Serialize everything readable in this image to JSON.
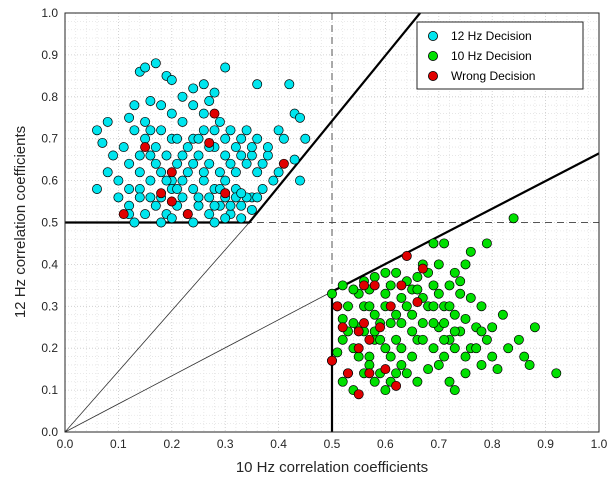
{
  "chart_data": {
    "type": "scatter",
    "title": "",
    "xlabel": "10 Hz correlation coefficients",
    "ylabel": "12 Hz correlation coefficients",
    "xlim": [
      0,
      1
    ],
    "ylim": [
      0,
      1
    ],
    "x_ticks": [
      "0.0",
      "0.1",
      "0.2",
      "0.3",
      "0.4",
      "0.5",
      "0.6",
      "0.7",
      "0.8",
      "0.9",
      "1.0"
    ],
    "y_ticks": [
      "0.0",
      "0.1",
      "0.2",
      "0.3",
      "0.4",
      "0.5",
      "0.6",
      "0.7",
      "0.8",
      "0.9",
      "1.0"
    ],
    "grid": "dotted minor and major",
    "legend_position": "top-right",
    "colors": {
      "cyan": "#00e5ee",
      "green": "#00e000",
      "red": "#e00000",
      "edge": "#000000"
    },
    "series": [
      {
        "name": "12 Hz Decision",
        "color": "#00e5ee",
        "points": [
          [
            0.06,
            0.72
          ],
          [
            0.07,
            0.69
          ],
          [
            0.08,
            0.74
          ],
          [
            0.12,
            0.75
          ],
          [
            0.14,
            0.86
          ],
          [
            0.15,
            0.87
          ],
          [
            0.17,
            0.88
          ],
          [
            0.19,
            0.85
          ],
          [
            0.13,
            0.78
          ],
          [
            0.16,
            0.79
          ],
          [
            0.2,
            0.84
          ],
          [
            0.22,
            0.8
          ],
          [
            0.24,
            0.82
          ],
          [
            0.26,
            0.83
          ],
          [
            0.28,
            0.81
          ],
          [
            0.3,
            0.87
          ],
          [
            0.36,
            0.83
          ],
          [
            0.42,
            0.83
          ],
          [
            0.43,
            0.76
          ],
          [
            0.44,
            0.75
          ],
          [
            0.45,
            0.7
          ],
          [
            0.41,
            0.7
          ],
          [
            0.43,
            0.65
          ],
          [
            0.44,
            0.6
          ],
          [
            0.4,
            0.62
          ],
          [
            0.38,
            0.66
          ],
          [
            0.36,
            0.7
          ],
          [
            0.34,
            0.72
          ],
          [
            0.32,
            0.68
          ],
          [
            0.3,
            0.7
          ],
          [
            0.28,
            0.72
          ],
          [
            0.26,
            0.76
          ],
          [
            0.24,
            0.7
          ],
          [
            0.22,
            0.66
          ],
          [
            0.2,
            0.7
          ],
          [
            0.18,
            0.72
          ],
          [
            0.16,
            0.66
          ],
          [
            0.14,
            0.62
          ],
          [
            0.12,
            0.64
          ],
          [
            0.1,
            0.6
          ],
          [
            0.08,
            0.62
          ],
          [
            0.06,
            0.58
          ],
          [
            0.1,
            0.56
          ],
          [
            0.12,
            0.54
          ],
          [
            0.14,
            0.58
          ],
          [
            0.16,
            0.6
          ],
          [
            0.18,
            0.62
          ],
          [
            0.2,
            0.6
          ],
          [
            0.22,
            0.56
          ],
          [
            0.24,
            0.58
          ],
          [
            0.26,
            0.6
          ],
          [
            0.28,
            0.58
          ],
          [
            0.3,
            0.6
          ],
          [
            0.32,
            0.62
          ],
          [
            0.34,
            0.64
          ],
          [
            0.36,
            0.62
          ],
          [
            0.37,
            0.58
          ],
          [
            0.35,
            0.56
          ],
          [
            0.33,
            0.54
          ],
          [
            0.31,
            0.52
          ],
          [
            0.29,
            0.54
          ],
          [
            0.27,
            0.52
          ],
          [
            0.25,
            0.54
          ],
          [
            0.23,
            0.52
          ],
          [
            0.21,
            0.54
          ],
          [
            0.19,
            0.52
          ],
          [
            0.17,
            0.54
          ],
          [
            0.15,
            0.52
          ],
          [
            0.13,
            0.5
          ],
          [
            0.12,
            0.52
          ],
          [
            0.18,
            0.5
          ],
          [
            0.2,
            0.51
          ],
          [
            0.24,
            0.5
          ],
          [
            0.28,
            0.5
          ],
          [
            0.3,
            0.51
          ],
          [
            0.33,
            0.51
          ],
          [
            0.35,
            0.53
          ],
          [
            0.27,
            0.56
          ],
          [
            0.23,
            0.62
          ],
          [
            0.21,
            0.64
          ],
          [
            0.19,
            0.66
          ],
          [
            0.17,
            0.68
          ],
          [
            0.15,
            0.7
          ],
          [
            0.13,
            0.72
          ],
          [
            0.11,
            0.68
          ],
          [
            0.09,
            0.66
          ],
          [
            0.25,
            0.66
          ],
          [
            0.27,
            0.64
          ],
          [
            0.29,
            0.62
          ],
          [
            0.31,
            0.64
          ],
          [
            0.33,
            0.66
          ],
          [
            0.35,
            0.66
          ],
          [
            0.37,
            0.64
          ],
          [
            0.39,
            0.6
          ],
          [
            0.38,
            0.68
          ],
          [
            0.4,
            0.72
          ],
          [
            0.22,
            0.74
          ],
          [
            0.2,
            0.76
          ],
          [
            0.18,
            0.78
          ],
          [
            0.26,
            0.72
          ],
          [
            0.28,
            0.68
          ],
          [
            0.3,
            0.66
          ],
          [
            0.32,
            0.58
          ],
          [
            0.34,
            0.56
          ],
          [
            0.36,
            0.56
          ],
          [
            0.26,
            0.62
          ],
          [
            0.24,
            0.64
          ],
          [
            0.22,
            0.6
          ],
          [
            0.2,
            0.58
          ],
          [
            0.18,
            0.56
          ],
          [
            0.16,
            0.56
          ],
          [
            0.14,
            0.56
          ],
          [
            0.12,
            0.58
          ],
          [
            0.28,
            0.54
          ],
          [
            0.3,
            0.56
          ],
          [
            0.32,
            0.56
          ],
          [
            0.21,
            0.7
          ],
          [
            0.23,
            0.68
          ],
          [
            0.25,
            0.7
          ],
          [
            0.27,
            0.68
          ],
          [
            0.29,
            0.74
          ],
          [
            0.31,
            0.72
          ],
          [
            0.33,
            0.7
          ],
          [
            0.35,
            0.68
          ],
          [
            0.24,
            0.78
          ],
          [
            0.27,
            0.79
          ],
          [
            0.15,
            0.74
          ],
          [
            0.17,
            0.64
          ],
          [
            0.19,
            0.6
          ],
          [
            0.21,
            0.58
          ],
          [
            0.25,
            0.56
          ],
          [
            0.29,
            0.58
          ],
          [
            0.31,
            0.54
          ],
          [
            0.33,
            0.57
          ],
          [
            0.14,
            0.66
          ],
          [
            0.16,
            0.72
          ]
        ]
      },
      {
        "name": "10 Hz Decision",
        "color": "#00e000",
        "points": [
          [
            0.5,
            0.33
          ],
          [
            0.51,
            0.3
          ],
          [
            0.52,
            0.27
          ],
          [
            0.52,
            0.22
          ],
          [
            0.51,
            0.19
          ],
          [
            0.5,
            0.17
          ],
          [
            0.52,
            0.12
          ],
          [
            0.54,
            0.1
          ],
          [
            0.53,
            0.14
          ],
          [
            0.54,
            0.2
          ],
          [
            0.55,
            0.25
          ],
          [
            0.56,
            0.3
          ],
          [
            0.57,
            0.34
          ],
          [
            0.58,
            0.37
          ],
          [
            0.6,
            0.38
          ],
          [
            0.61,
            0.35
          ],
          [
            0.6,
            0.3
          ],
          [
            0.59,
            0.26
          ],
          [
            0.58,
            0.22
          ],
          [
            0.57,
            0.18
          ],
          [
            0.56,
            0.14
          ],
          [
            0.58,
            0.12
          ],
          [
            0.6,
            0.1
          ],
          [
            0.62,
            0.14
          ],
          [
            0.61,
            0.18
          ],
          [
            0.62,
            0.22
          ],
          [
            0.63,
            0.26
          ],
          [
            0.64,
            0.3
          ],
          [
            0.65,
            0.34
          ],
          [
            0.66,
            0.37
          ],
          [
            0.67,
            0.4
          ],
          [
            0.69,
            0.45
          ],
          [
            0.71,
            0.45
          ],
          [
            0.7,
            0.4
          ],
          [
            0.69,
            0.35
          ],
          [
            0.68,
            0.3
          ],
          [
            0.67,
            0.26
          ],
          [
            0.66,
            0.22
          ],
          [
            0.65,
            0.18
          ],
          [
            0.64,
            0.14
          ],
          [
            0.66,
            0.12
          ],
          [
            0.68,
            0.15
          ],
          [
            0.69,
            0.2
          ],
          [
            0.7,
            0.25
          ],
          [
            0.71,
            0.3
          ],
          [
            0.72,
            0.35
          ],
          [
            0.73,
            0.38
          ],
          [
            0.75,
            0.4
          ],
          [
            0.74,
            0.33
          ],
          [
            0.73,
            0.28
          ],
          [
            0.72,
            0.22
          ],
          [
            0.71,
            0.18
          ],
          [
            0.72,
            0.12
          ],
          [
            0.73,
            0.1
          ],
          [
            0.75,
            0.14
          ],
          [
            0.76,
            0.2
          ],
          [
            0.77,
            0.25
          ],
          [
            0.78,
            0.3
          ],
          [
            0.79,
            0.22
          ],
          [
            0.8,
            0.18
          ],
          [
            0.81,
            0.15
          ],
          [
            0.83,
            0.2
          ],
          [
            0.85,
            0.22
          ],
          [
            0.86,
            0.18
          ],
          [
            0.88,
            0.25
          ],
          [
            0.87,
            0.16
          ],
          [
            0.92,
            0.14
          ],
          [
            0.84,
            0.51
          ],
          [
            0.79,
            0.45
          ],
          [
            0.76,
            0.43
          ],
          [
            0.74,
            0.24
          ],
          [
            0.7,
            0.16
          ],
          [
            0.63,
            0.2
          ],
          [
            0.62,
            0.28
          ],
          [
            0.6,
            0.33
          ],
          [
            0.58,
            0.28
          ],
          [
            0.56,
            0.24
          ],
          [
            0.54,
            0.26
          ],
          [
            0.53,
            0.3
          ],
          [
            0.55,
            0.33
          ],
          [
            0.57,
            0.3
          ],
          [
            0.59,
            0.22
          ],
          [
            0.61,
            0.26
          ],
          [
            0.63,
            0.32
          ],
          [
            0.65,
            0.28
          ],
          [
            0.67,
            0.22
          ],
          [
            0.69,
            0.26
          ],
          [
            0.71,
            0.22
          ],
          [
            0.73,
            0.2
          ],
          [
            0.75,
            0.27
          ],
          [
            0.77,
            0.2
          ],
          [
            0.78,
            0.16
          ],
          [
            0.8,
            0.25
          ],
          [
            0.82,
            0.28
          ],
          [
            0.64,
            0.36
          ],
          [
            0.62,
            0.38
          ],
          [
            0.56,
            0.36
          ],
          [
            0.54,
            0.34
          ],
          [
            0.52,
            0.35
          ],
          [
            0.53,
            0.24
          ],
          [
            0.55,
            0.18
          ],
          [
            0.57,
            0.16
          ],
          [
            0.59,
            0.14
          ],
          [
            0.61,
            0.12
          ],
          [
            0.63,
            0.16
          ],
          [
            0.65,
            0.24
          ],
          [
            0.67,
            0.32
          ],
          [
            0.69,
            0.3
          ],
          [
            0.71,
            0.26
          ],
          [
            0.73,
            0.24
          ],
          [
            0.75,
            0.18
          ],
          [
            0.66,
            0.34
          ],
          [
            0.68,
            0.38
          ],
          [
            0.7,
            0.33
          ],
          [
            0.72,
            0.3
          ],
          [
            0.74,
            0.36
          ],
          [
            0.76,
            0.32
          ],
          [
            0.78,
            0.24
          ],
          [
            0.6,
            0.2
          ],
          [
            0.58,
            0.24
          ]
        ]
      },
      {
        "name": "Wrong Decision",
        "color": "#e00000",
        "points": [
          [
            0.11,
            0.52
          ],
          [
            0.15,
            0.68
          ],
          [
            0.18,
            0.57
          ],
          [
            0.2,
            0.55
          ],
          [
            0.2,
            0.62
          ],
          [
            0.23,
            0.52
          ],
          [
            0.27,
            0.69
          ],
          [
            0.28,
            0.76
          ],
          [
            0.3,
            0.57
          ],
          [
            0.41,
            0.64
          ],
          [
            0.5,
            0.17
          ],
          [
            0.51,
            0.3
          ],
          [
            0.52,
            0.25
          ],
          [
            0.53,
            0.14
          ],
          [
            0.55,
            0.2
          ],
          [
            0.55,
            0.09
          ],
          [
            0.55,
            0.24
          ],
          [
            0.56,
            0.35
          ],
          [
            0.57,
            0.22
          ],
          [
            0.57,
            0.14
          ],
          [
            0.58,
            0.35
          ],
          [
            0.59,
            0.25
          ],
          [
            0.6,
            0.15
          ],
          [
            0.61,
            0.3
          ],
          [
            0.62,
            0.11
          ],
          [
            0.63,
            0.35
          ],
          [
            0.64,
            0.42
          ],
          [
            0.66,
            0.31
          ],
          [
            0.67,
            0.39
          ],
          [
            0.56,
            0.26
          ]
        ]
      }
    ],
    "decision_boundaries": {
      "solid_12hz": [
        [
          0,
          0.5
        ],
        [
          0.345,
          0.5
        ],
        [
          0.665,
          1.0
        ]
      ],
      "solid_10hz": [
        [
          0.5,
          0
        ],
        [
          0.5,
          0.335
        ],
        [
          1.0,
          0.665
        ]
      ],
      "thin_diagonals": [
        [
          [
            0,
            0
          ],
          [
            0.345,
            0.5
          ]
        ],
        [
          [
            0,
            0
          ],
          [
            0.5,
            0.335
          ]
        ]
      ],
      "dashed_at": 0.5
    }
  }
}
